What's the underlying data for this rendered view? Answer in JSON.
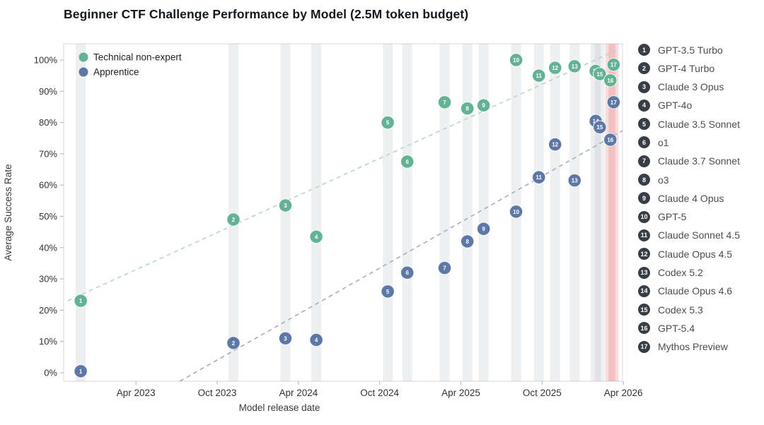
{
  "title": "Beginner CTF Challenge Performance by Model (2.5M token budget)",
  "colors": {
    "technical_point": "#63b295",
    "apprentice_point": "#5d77a6",
    "technical_trend": "#b7d6c8",
    "apprentice_trend": "#a6adb8",
    "band_gray": "rgba(170,174,184,0.20)",
    "band_red": "rgba(222,96,96,0.22)",
    "badge": "#383d46",
    "plot_border": "#d8d8d8",
    "tick_text": "#333333",
    "axis_text": "#3a3a3a",
    "point_number_text": "#ffffff"
  },
  "legend": {
    "series": [
      {
        "label": "Technical non-expert",
        "color_key": "technical_point"
      },
      {
        "label": "Apprentice",
        "color_key": "apprentice_point"
      }
    ]
  },
  "chart_data": {
    "type": "scatter",
    "title": "Beginner CTF Challenge Performance by Model (2.5M token budget)",
    "xlabel": "Model release date",
    "ylabel": "Average Success Rate",
    "x_unit": "decimal_year",
    "x_domain": [
      2022.805,
      2026.245
    ],
    "y_domain": [
      -2.71,
      105.19
    ],
    "x_ticks": [
      {
        "value": 2023.25,
        "label": "Apr 2023"
      },
      {
        "value": 2023.75,
        "label": "Oct 2023"
      },
      {
        "value": 2024.25,
        "label": "Apr 2024"
      },
      {
        "value": 2024.75,
        "label": "Oct 2024"
      },
      {
        "value": 2025.25,
        "label": "Apr 2025"
      },
      {
        "value": 2025.75,
        "label": "Oct 2025"
      },
      {
        "value": 2026.25,
        "label": "Apr 2026"
      }
    ],
    "y_ticks": [
      0,
      10,
      20,
      30,
      40,
      50,
      60,
      70,
      80,
      90,
      100
    ],
    "series_names": [
      "Technical non-expert",
      "Apprentice"
    ],
    "models": [
      {
        "num": 1,
        "name": "GPT-3.5 Turbo",
        "release": 2022.91,
        "technical_non_expert": 23,
        "apprentice": 0.5,
        "highlighted": false
      },
      {
        "num": 2,
        "name": "GPT-4 Turbo",
        "release": 2023.85,
        "technical_non_expert": 49,
        "apprentice": 9.5,
        "highlighted": false
      },
      {
        "num": 3,
        "name": "Claude 3 Opus",
        "release": 2024.17,
        "technical_non_expert": 53.5,
        "apprentice": 11,
        "highlighted": false
      },
      {
        "num": 4,
        "name": "GPT-4o",
        "release": 2024.36,
        "technical_non_expert": 43.5,
        "apprentice": 10.5,
        "highlighted": false
      },
      {
        "num": 5,
        "name": "Claude 3.5 Sonnet",
        "release": 2024.8,
        "technical_non_expert": 80,
        "apprentice": 26,
        "highlighted": false
      },
      {
        "num": 6,
        "name": "o1",
        "release": 2024.92,
        "technical_non_expert": 67.5,
        "apprentice": 32,
        "highlighted": false
      },
      {
        "num": 7,
        "name": "Claude 3.7 Sonnet",
        "release": 2025.15,
        "technical_non_expert": 86.5,
        "apprentice": 33.5,
        "highlighted": false
      },
      {
        "num": 8,
        "name": "o3",
        "release": 2025.29,
        "technical_non_expert": 84.5,
        "apprentice": 42,
        "highlighted": false
      },
      {
        "num": 9,
        "name": "Claude 4 Opus",
        "release": 2025.39,
        "technical_non_expert": 85.5,
        "apprentice": 46,
        "highlighted": false
      },
      {
        "num": 10,
        "name": "GPT-5",
        "release": 2025.59,
        "technical_non_expert": 100,
        "apprentice": 51.5,
        "highlighted": false
      },
      {
        "num": 11,
        "name": "Claude Sonnet 4.5",
        "release": 2025.73,
        "technical_non_expert": 95,
        "apprentice": 62.5,
        "highlighted": false
      },
      {
        "num": 12,
        "name": "Claude Opus 4.5",
        "release": 2025.83,
        "technical_non_expert": 97.5,
        "apprentice": 73,
        "highlighted": false
      },
      {
        "num": 13,
        "name": "Codex 5.2",
        "release": 2025.95,
        "technical_non_expert": 98,
        "apprentice": 61.5,
        "highlighted": false
      },
      {
        "num": 14,
        "name": "Claude Opus 4.6",
        "release": 2026.08,
        "technical_non_expert": 96.5,
        "apprentice": 80.5,
        "highlighted": false
      },
      {
        "num": 15,
        "name": "Codex 5.3",
        "release": 2026.105,
        "technical_non_expert": 95.5,
        "apprentice": 78.5,
        "highlighted": false
      },
      {
        "num": 16,
        "name": "GPT-5.4",
        "release": 2026.17,
        "technical_non_expert": 93.5,
        "apprentice": 74.5,
        "highlighted": true
      },
      {
        "num": 17,
        "name": "Mythos Preview",
        "release": 2026.19,
        "technical_non_expert": 98.5,
        "apprentice": 86.5,
        "highlighted": true
      }
    ],
    "trend_lines": [
      {
        "series": "Technical non-expert",
        "x1": 2022.83,
        "y1": 23.0,
        "x2": 2026.22,
        "y2": 103.4
      },
      {
        "series": "Apprentice",
        "x1": 2023.52,
        "y1": -2.7,
        "x2": 2026.245,
        "y2": 77.4
      }
    ]
  }
}
